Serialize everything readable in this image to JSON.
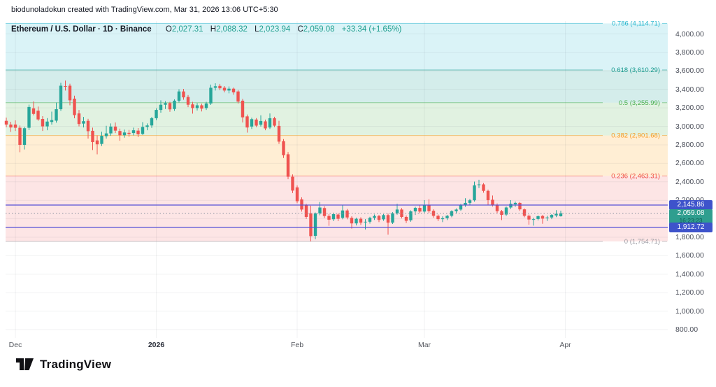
{
  "attribution": "biodunoladokun created with TradingView.com, Mar 31, 2026 13:06 UTC+5:30",
  "legend": {
    "title": "Ethereum / U.S. Dollar · 1D · Binance",
    "o_label": "O",
    "o_value": "2,027.31",
    "h_label": "H",
    "h_value": "2,088.32",
    "l_label": "L",
    "l_value": "2,023.94",
    "c_label": "C",
    "c_value": "2,059.08",
    "change": "+33.34 (+1.65%)"
  },
  "footer": {
    "logo_text": "TradingView",
    "logo_icon": "tradingview-logo"
  },
  "colors": {
    "up": "#26a69a",
    "down": "#ef5350",
    "horizontal_line": "#5552d6",
    "badge_blue": "#3e53cb",
    "badge_green": "#2f9e8f",
    "current_price_line": "#8c939f",
    "grid": "rgba(60,66,82,0.07)"
  },
  "chart_data": {
    "type": "candlestick",
    "title": "Ethereum / U.S. Dollar",
    "interval": "1D",
    "exchange": "Binance",
    "last_ohlc": {
      "open": 2027.31,
      "high": 2088.32,
      "low": 2023.94,
      "close": 2059.08,
      "change": "+33.34 (+1.65%)"
    },
    "x_ticks": [
      {
        "label": "Dec",
        "x": 22
      },
      {
        "label": "2026",
        "x": 223.5,
        "year": true
      },
      {
        "label": "Feb",
        "x": 425
      },
      {
        "label": "Mar",
        "x": 607
      },
      {
        "label": "Apr",
        "x": 808.5
      }
    ],
    "y_ticks": [
      {
        "label": "4,000.00",
        "value": 4000
      },
      {
        "label": "3,800.00",
        "value": 3800
      },
      {
        "label": "3,600.00",
        "value": 3600
      },
      {
        "label": "3,400.00",
        "value": 3400
      },
      {
        "label": "3,200.00",
        "value": 3200
      },
      {
        "label": "3,000.00",
        "value": 3000
      },
      {
        "label": "2,800.00",
        "value": 2800
      },
      {
        "label": "2,600.00",
        "value": 2600
      },
      {
        "label": "2,400.00",
        "value": 2400
      },
      {
        "label": "2,200.00",
        "value": 2200
      },
      {
        "label": "2,000.00",
        "value": 2000
      },
      {
        "label": "1,800.00",
        "value": 1800
      },
      {
        "label": "1,600.00",
        "value": 1600
      },
      {
        "label": "1,400.00",
        "value": 1400
      },
      {
        "label": "1,200.00",
        "value": 1200
      },
      {
        "label": "1,000.00",
        "value": 1000
      },
      {
        "label": "800.00",
        "value": 800
      }
    ],
    "fib_levels": [
      {
        "level": "0.786",
        "label": "0.786 (4,114.71)",
        "value": 4114.71,
        "color": "#22b5cd"
      },
      {
        "level": "0.618",
        "label": "0.618 (3,610.29)",
        "value": 3610.29,
        "color": "#14988c"
      },
      {
        "level": "0.5",
        "label": "0.5 (3,255.99)",
        "value": 3255.99,
        "color": "#4caf50"
      },
      {
        "level": "0.382",
        "label": "0.382 (2,901.68)",
        "value": 2901.68,
        "color": "#f59b23"
      },
      {
        "level": "0.236",
        "label": "0.236 (2,463.31)",
        "value": 2463.31,
        "color": "#ef4a3e"
      },
      {
        "level": "0",
        "label": "0 (1,754.71)",
        "value": 1754.71,
        "color": "#9b9ba3"
      }
    ],
    "band_fills": [
      "rgba(34,181,205,0.17)",
      "rgba(0,150,136,0.17)",
      "rgba(76,175,80,0.17)",
      "rgba(255,152,0,0.17)",
      "rgba(239,83,80,0.15)"
    ],
    "horizontal_lines": [
      {
        "price_label": "2,145.86",
        "value": 2145.86
      },
      {
        "price_label": "1,912.72",
        "value": 1912.72
      }
    ],
    "current_price": {
      "price_label": "2,059.08",
      "value": 2059.08,
      "countdown": "16:23:23"
    },
    "candles": [
      [
        3060,
        3095,
        2990,
        3020
      ],
      [
        3020,
        3050,
        2940,
        2988
      ],
      [
        3020,
        3065,
        2950,
        2985
      ],
      [
        2985,
        3010,
        2720,
        2800
      ],
      [
        2800,
        2995,
        2750,
        2980
      ],
      [
        2985,
        3235,
        2960,
        3210
      ],
      [
        3195,
        3270,
        3120,
        3135
      ],
      [
        3170,
        3215,
        3060,
        3075
      ],
      [
        3080,
        3110,
        2950,
        3000
      ],
      [
        3000,
        3090,
        2958,
        3052
      ],
      [
        3048,
        3160,
        3020,
        3068
      ],
      [
        3062,
        3258,
        3040,
        3186
      ],
      [
        3186,
        3472,
        3168,
        3440
      ],
      [
        3436,
        3496,
        3388,
        3430
      ],
      [
        3440,
        3462,
        3228,
        3282
      ],
      [
        3300,
        3332,
        3088,
        3122
      ],
      [
        3140,
        3178,
        3000,
        3026
      ],
      [
        3030,
        3102,
        2988,
        3056
      ],
      [
        3060,
        3082,
        2868,
        2948
      ],
      [
        2952,
        2986,
        2744,
        2830
      ],
      [
        2848,
        2902,
        2698,
        2806
      ],
      [
        2810,
        2942,
        2788,
        2898
      ],
      [
        2894,
        3006,
        2868,
        2924
      ],
      [
        2924,
        3032,
        2898,
        2998
      ],
      [
        2998,
        3042,
        2928,
        2954
      ],
      [
        2950,
        2976,
        2844,
        2904
      ],
      [
        2904,
        2966,
        2878,
        2934
      ],
      [
        2930,
        2962,
        2888,
        2918
      ],
      [
        2928,
        2986,
        2902,
        2958
      ],
      [
        2954,
        2982,
        2884,
        2914
      ],
      [
        2918,
        3046,
        2908,
        2994
      ],
      [
        2994,
        3032,
        2958,
        3010
      ],
      [
        3010,
        3102,
        2984,
        3088
      ],
      [
        3088,
        3196,
        3068,
        3178
      ],
      [
        3178,
        3282,
        3148,
        3234
      ],
      [
        3234,
        3272,
        3188,
        3252
      ],
      [
        3252,
        3266,
        3158,
        3184
      ],
      [
        3188,
        3292,
        3168,
        3278
      ],
      [
        3278,
        3402,
        3258,
        3378
      ],
      [
        3378,
        3406,
        3288,
        3314
      ],
      [
        3318,
        3340,
        3208,
        3234
      ],
      [
        3238,
        3266,
        3138,
        3198
      ],
      [
        3198,
        3252,
        3172,
        3228
      ],
      [
        3228,
        3246,
        3162,
        3192
      ],
      [
        3198,
        3266,
        3178,
        3248
      ],
      [
        3248,
        3452,
        3232,
        3418
      ],
      [
        3418,
        3466,
        3388,
        3434
      ],
      [
        3438,
        3460,
        3392,
        3412
      ],
      [
        3418,
        3436,
        3368,
        3388
      ],
      [
        3388,
        3432,
        3358,
        3408
      ],
      [
        3408,
        3420,
        3342,
        3368
      ],
      [
        3378,
        3394,
        3248,
        3268
      ],
      [
        3278,
        3298,
        3042,
        3098
      ],
      [
        3108,
        3128,
        2932,
        2988
      ],
      [
        2998,
        3094,
        2972,
        3078
      ],
      [
        3074,
        3090,
        2992,
        3008
      ],
      [
        3018,
        3120,
        2998,
        3058
      ],
      [
        3054,
        3074,
        2958,
        2978
      ],
      [
        2988,
        3140,
        2972,
        3088
      ],
      [
        3088,
        3104,
        2992,
        3008
      ],
      [
        3005,
        3060,
        2810,
        2835
      ],
      [
        2840,
        2862,
        2658,
        2688
      ],
      [
        2698,
        2722,
        2428,
        2455
      ],
      [
        2455,
        2480,
        2278,
        2305
      ],
      [
        2340,
        2362,
        2168,
        2190
      ],
      [
        2210,
        2232,
        2078,
        2100
      ],
      [
        2148,
        2162,
        1998,
        2020
      ],
      [
        2060,
        2142,
        1756,
        1812
      ],
      [
        1815,
        2068,
        1778,
        2058
      ],
      [
        2058,
        2182,
        2038,
        2122
      ],
      [
        2116,
        2136,
        2008,
        2030
      ],
      [
        2030,
        2052,
        1924,
        1990
      ],
      [
        1995,
        2066,
        1974,
        2050
      ],
      [
        2046,
        2062,
        1974,
        2000
      ],
      [
        2010,
        2152,
        1994,
        2090
      ],
      [
        2090,
        2106,
        1994,
        2014
      ],
      [
        2010,
        2026,
        1894,
        1950
      ],
      [
        1950,
        2012,
        1928,
        2000
      ],
      [
        2000,
        2016,
        1934,
        1958
      ],
      [
        1962,
        1996,
        1884,
        1968
      ],
      [
        1968,
        2022,
        1948,
        2010
      ],
      [
        2010,
        2046,
        1988,
        2030
      ],
      [
        2030,
        2042,
        1964,
        1988
      ],
      [
        1994,
        2050,
        1978,
        2040
      ],
      [
        2040,
        2056,
        1828,
        1958
      ],
      [
        1958,
        2072,
        1944,
        2060
      ],
      [
        2060,
        2162,
        2044,
        2100
      ],
      [
        2100,
        2116,
        2004,
        2020
      ],
      [
        2020,
        2036,
        1954,
        1978
      ],
      [
        1984,
        2092,
        1968,
        2080
      ],
      [
        2080,
        2130,
        2042,
        2118
      ],
      [
        2118,
        2146,
        2058,
        2078
      ],
      [
        2078,
        2202,
        2064,
        2148
      ],
      [
        2148,
        2212,
        2062,
        2082
      ],
      [
        2086,
        2102,
        2012,
        2032
      ],
      [
        2032,
        2046,
        1974,
        1996
      ],
      [
        1996,
        2026,
        1964,
        2006
      ],
      [
        2006,
        2042,
        1986,
        2032
      ],
      [
        2032,
        2092,
        2016,
        2082
      ],
      [
        2082,
        2112,
        2056,
        2100
      ],
      [
        2100,
        2162,
        2086,
        2150
      ],
      [
        2150,
        2222,
        2130,
        2172
      ],
      [
        2172,
        2216,
        2146,
        2200
      ],
      [
        2200,
        2402,
        2186,
        2362
      ],
      [
        2366,
        2422,
        2332,
        2372
      ],
      [
        2372,
        2386,
        2282,
        2302
      ],
      [
        2302,
        2316,
        2146,
        2202
      ],
      [
        2206,
        2252,
        2132,
        2152
      ],
      [
        2152,
        2166,
        2062,
        2082
      ],
      [
        2082,
        2096,
        1986,
        2042
      ],
      [
        2046,
        2132,
        2030,
        2122
      ],
      [
        2122,
        2202,
        2106,
        2162
      ],
      [
        2156,
        2186,
        2130,
        2172
      ],
      [
        2172,
        2182,
        2086,
        2102
      ],
      [
        2102,
        2112,
        2016,
        2032
      ],
      [
        2032,
        2046,
        1936,
        1992
      ],
      [
        1992,
        2012,
        1926,
        1996
      ],
      [
        1998,
        2036,
        1982,
        2028
      ],
      [
        2030,
        2042,
        1946,
        2002
      ],
      [
        2006,
        2032,
        1976,
        2014
      ],
      [
        2014,
        2050,
        1996,
        2042
      ],
      [
        2036,
        2094,
        2018,
        2054
      ],
      [
        2027.31,
        2088.32,
        2023.94,
        2059.08
      ]
    ]
  }
}
